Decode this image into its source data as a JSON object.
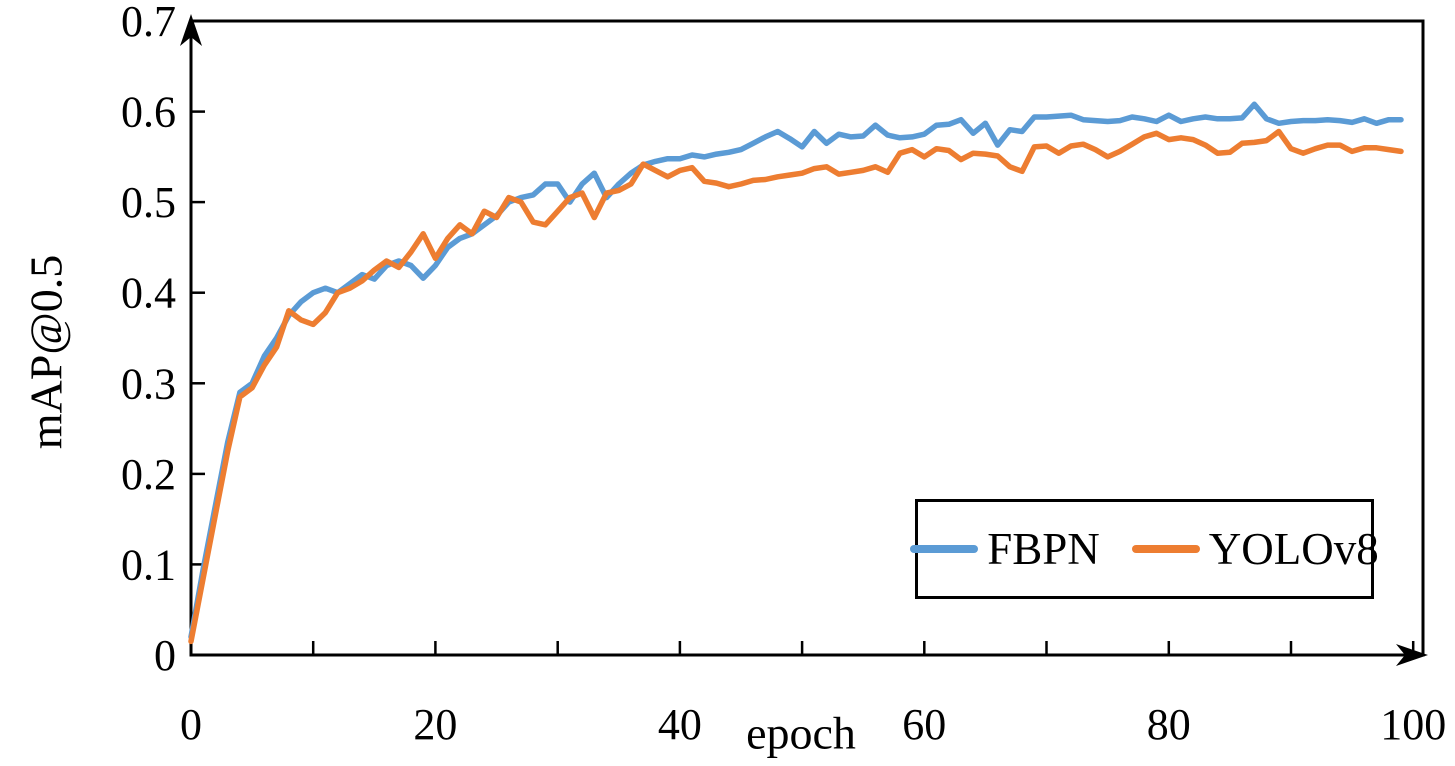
{
  "figure": {
    "background": "#ffffff",
    "axis_color": "#000000"
  },
  "chart_data": {
    "type": "line",
    "title": "",
    "xlabel": "epoch",
    "ylabel": "mAP@0.5",
    "xlim": [
      0,
      100.8
    ],
    "ylim": [
      0,
      0.7
    ],
    "grid": "off",
    "frame": "box with arrowheads on left (up) and bottom (right) axes",
    "legend_position": "inside-bottom-right",
    "x_ticks": {
      "major_values": [
        0,
        20,
        40,
        60,
        80,
        100
      ],
      "major_labels": [
        "0",
        "20",
        "40",
        "60",
        "80",
        "100"
      ],
      "minor_values": [
        10,
        30,
        50,
        70,
        90
      ]
    },
    "y_ticks": {
      "values": [
        0,
        0.1,
        0.2,
        0.3,
        0.4,
        0.5,
        0.6,
        0.7
      ],
      "labels": [
        "0",
        "0.1",
        "0.2",
        "0.3",
        "0.4",
        "0.5",
        "0.6",
        "0.7"
      ]
    },
    "x": [
      0,
      1,
      2,
      3,
      4,
      5,
      6,
      7,
      8,
      9,
      10,
      11,
      12,
      13,
      14,
      15,
      16,
      17,
      18,
      19,
      20,
      21,
      22,
      23,
      24,
      25,
      26,
      27,
      28,
      29,
      30,
      31,
      32,
      33,
      34,
      35,
      36,
      37,
      38,
      39,
      40,
      41,
      42,
      43,
      44,
      45,
      46,
      47,
      48,
      49,
      50,
      51,
      52,
      53,
      54,
      55,
      56,
      57,
      58,
      59,
      60,
      61,
      62,
      63,
      64,
      65,
      66,
      67,
      68,
      69,
      70,
      71,
      72,
      73,
      74,
      75,
      76,
      77,
      78,
      79,
      80,
      81,
      82,
      83,
      84,
      85,
      86,
      87,
      88,
      89,
      90,
      91,
      92,
      93,
      94,
      95,
      96,
      97,
      98,
      99
    ],
    "series": [
      {
        "name": "FBPN",
        "color": "#5B9BD5",
        "values": [
          0.02,
          0.095,
          0.165,
          0.235,
          0.29,
          0.3,
          0.33,
          0.35,
          0.375,
          0.39,
          0.4,
          0.405,
          0.4,
          0.41,
          0.42,
          0.415,
          0.43,
          0.435,
          0.43,
          0.416,
          0.43,
          0.45,
          0.46,
          0.465,
          0.475,
          0.485,
          0.5,
          0.505,
          0.508,
          0.52,
          0.52,
          0.5,
          0.52,
          0.532,
          0.505,
          0.52,
          0.532,
          0.541,
          0.545,
          0.548,
          0.548,
          0.552,
          0.55,
          0.553,
          0.555,
          0.558,
          0.565,
          0.572,
          0.578,
          0.57,
          0.561,
          0.578,
          0.565,
          0.575,
          0.572,
          0.573,
          0.585,
          0.574,
          0.571,
          0.572,
          0.575,
          0.585,
          0.586,
          0.591,
          0.576,
          0.587,
          0.563,
          0.58,
          0.578,
          0.594,
          0.594,
          0.595,
          0.596,
          0.591,
          0.59,
          0.589,
          0.59,
          0.594,
          0.592,
          0.589,
          0.596,
          0.589,
          0.592,
          0.594,
          0.592,
          0.592,
          0.593,
          0.608,
          0.592,
          0.587,
          0.589,
          0.59,
          0.59,
          0.591,
          0.59,
          0.588,
          0.592,
          0.587,
          0.591,
          0.591
        ]
      },
      {
        "name": "YOLOv8",
        "color": "#ED7D31",
        "values": [
          0.015,
          0.085,
          0.155,
          0.225,
          0.285,
          0.295,
          0.32,
          0.34,
          0.38,
          0.37,
          0.365,
          0.378,
          0.4,
          0.405,
          0.413,
          0.425,
          0.435,
          0.428,
          0.445,
          0.465,
          0.438,
          0.46,
          0.475,
          0.465,
          0.49,
          0.483,
          0.505,
          0.5,
          0.478,
          0.475,
          0.49,
          0.505,
          0.51,
          0.483,
          0.51,
          0.513,
          0.52,
          0.542,
          0.535,
          0.528,
          0.535,
          0.538,
          0.523,
          0.521,
          0.517,
          0.52,
          0.524,
          0.525,
          0.528,
          0.53,
          0.532,
          0.537,
          0.539,
          0.531,
          0.533,
          0.535,
          0.539,
          0.533,
          0.554,
          0.558,
          0.55,
          0.559,
          0.557,
          0.547,
          0.554,
          0.553,
          0.551,
          0.539,
          0.534,
          0.561,
          0.562,
          0.554,
          0.562,
          0.564,
          0.558,
          0.55,
          0.556,
          0.564,
          0.572,
          0.576,
          0.569,
          0.571,
          0.569,
          0.563,
          0.554,
          0.555,
          0.565,
          0.566,
          0.568,
          0.578,
          0.559,
          0.554,
          0.559,
          0.563,
          0.563,
          0.556,
          0.56,
          0.56,
          0.558,
          0.556
        ]
      }
    ]
  }
}
